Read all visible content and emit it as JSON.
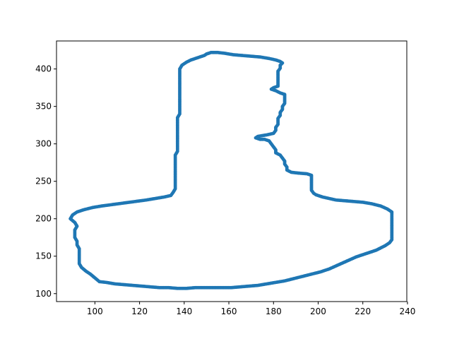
{
  "chart_data": {
    "type": "scatter",
    "title": "",
    "xlabel": "",
    "ylabel": "",
    "xlim": [
      82.8,
      239.7
    ],
    "ylim": [
      89.4,
      437.4
    ],
    "xticks": [
      100,
      120,
      140,
      160,
      180,
      200,
      220,
      240
    ],
    "yticks": [
      100,
      150,
      200,
      250,
      300,
      350,
      400
    ],
    "xtick_labels": [
      "100",
      "120",
      "140",
      "160",
      "180",
      "200",
      "220",
      "240"
    ],
    "ytick_labels": [
      "100",
      "150",
      "200",
      "250",
      "300",
      "350",
      "400"
    ],
    "grid": false,
    "legend": "none",
    "marker_color": "#1f77b4",
    "series": [
      {
        "points": [
          [
            152,
            422
          ],
          [
            155,
            422
          ],
          [
            158,
            421
          ],
          [
            162,
            419
          ],
          [
            166,
            418
          ],
          [
            170,
            417
          ],
          [
            174,
            416
          ],
          [
            178,
            414
          ],
          [
            181,
            412
          ],
          [
            183,
            410
          ],
          [
            184,
            408
          ],
          [
            183,
            405
          ],
          [
            183,
            401
          ],
          [
            182,
            397
          ],
          [
            182,
            393
          ],
          [
            182,
            389
          ],
          [
            182,
            385
          ],
          [
            182,
            381
          ],
          [
            182,
            377
          ],
          [
            180,
            375
          ],
          [
            179,
            373
          ],
          [
            181,
            371
          ],
          [
            183,
            368
          ],
          [
            185,
            366
          ],
          [
            185,
            362
          ],
          [
            185,
            358
          ],
          [
            185,
            354
          ],
          [
            184,
            350
          ],
          [
            184,
            346
          ],
          [
            183,
            342
          ],
          [
            183,
            338
          ],
          [
            182,
            334
          ],
          [
            182,
            330
          ],
          [
            182,
            326
          ],
          [
            181,
            322
          ],
          [
            181,
            318
          ],
          [
            180,
            314
          ],
          [
            177,
            312
          ],
          [
            173,
            310
          ],
          [
            172,
            308
          ],
          [
            174,
            306
          ],
          [
            176,
            306
          ],
          [
            178,
            304
          ],
          [
            179,
            300
          ],
          [
            180,
            296
          ],
          [
            181,
            292
          ],
          [
            181,
            288
          ],
          [
            183,
            285
          ],
          [
            184,
            281
          ],
          [
            185,
            277
          ],
          [
            185,
            273
          ],
          [
            186,
            269
          ],
          [
            186,
            265
          ],
          [
            188,
            262
          ],
          [
            191,
            261
          ],
          [
            195,
            260
          ],
          [
            197,
            258
          ],
          [
            197,
            254
          ],
          [
            197,
            250
          ],
          [
            197,
            246
          ],
          [
            197,
            242
          ],
          [
            197,
            238
          ],
          [
            198,
            234
          ],
          [
            199,
            232
          ],
          [
            202,
            229
          ],
          [
            205,
            227
          ],
          [
            208,
            225
          ],
          [
            212,
            224
          ],
          [
            216,
            223
          ],
          [
            220,
            222
          ],
          [
            224,
            220
          ],
          [
            228,
            217
          ],
          [
            231,
            213
          ],
          [
            233,
            209
          ],
          [
            233,
            205
          ],
          [
            233,
            200
          ],
          [
            233,
            196
          ],
          [
            233,
            192
          ],
          [
            233,
            188
          ],
          [
            233,
            184
          ],
          [
            233,
            180
          ],
          [
            233,
            176
          ],
          [
            233,
            172
          ],
          [
            232,
            168
          ],
          [
            230,
            164
          ],
          [
            228,
            161
          ],
          [
            226,
            158
          ],
          [
            223,
            155
          ],
          [
            220,
            152
          ],
          [
            217,
            149
          ],
          [
            214,
            145
          ],
          [
            211,
            141
          ],
          [
            208,
            137
          ],
          [
            205,
            133
          ],
          [
            201,
            129
          ],
          [
            197,
            126
          ],
          [
            193,
            123
          ],
          [
            189,
            120
          ],
          [
            185,
            117
          ],
          [
            181,
            115
          ],
          [
            177,
            113
          ],
          [
            173,
            111
          ],
          [
            169,
            110
          ],
          [
            165,
            109
          ],
          [
            161,
            108
          ],
          [
            157,
            108
          ],
          [
            153,
            108
          ],
          [
            149,
            108
          ],
          [
            145,
            108
          ],
          [
            141,
            107
          ],
          [
            137,
            107
          ],
          [
            133,
            108
          ],
          [
            129,
            108
          ],
          [
            125,
            109
          ],
          [
            121,
            110
          ],
          [
            117,
            111
          ],
          [
            113,
            112
          ],
          [
            109,
            113
          ],
          [
            105,
            115
          ],
          [
            102,
            116
          ],
          [
            100,
            121
          ],
          [
            98,
            126
          ],
          [
            96,
            130
          ],
          [
            94,
            135
          ],
          [
            93,
            140
          ],
          [
            93,
            145
          ],
          [
            93,
            150
          ],
          [
            93,
            155
          ],
          [
            93,
            160
          ],
          [
            92,
            165
          ],
          [
            92,
            170
          ],
          [
            91,
            175
          ],
          [
            91,
            180
          ],
          [
            91,
            185
          ],
          [
            92,
            190
          ],
          [
            91,
            195
          ],
          [
            89,
            200
          ],
          [
            90,
            205
          ],
          [
            92,
            209
          ],
          [
            95,
            212
          ],
          [
            99,
            215
          ],
          [
            103,
            217
          ],
          [
            108,
            219
          ],
          [
            113,
            221
          ],
          [
            118,
            223
          ],
          [
            123,
            225
          ],
          [
            127,
            227
          ],
          [
            131,
            229
          ],
          [
            134,
            231
          ],
          [
            135,
            235
          ],
          [
            136,
            240
          ],
          [
            136,
            245
          ],
          [
            136,
            250
          ],
          [
            136,
            255
          ],
          [
            136,
            260
          ],
          [
            136,
            265
          ],
          [
            136,
            270
          ],
          [
            136,
            275
          ],
          [
            136,
            280
          ],
          [
            136,
            285
          ],
          [
            137,
            290
          ],
          [
            137,
            295
          ],
          [
            137,
            300
          ],
          [
            137,
            305
          ],
          [
            137,
            310
          ],
          [
            137,
            315
          ],
          [
            137,
            320
          ],
          [
            137,
            325
          ],
          [
            137,
            330
          ],
          [
            137,
            335
          ],
          [
            138,
            340
          ],
          [
            138,
            345
          ],
          [
            138,
            350
          ],
          [
            138,
            355
          ],
          [
            138,
            360
          ],
          [
            138,
            365
          ],
          [
            138,
            370
          ],
          [
            138,
            375
          ],
          [
            138,
            380
          ],
          [
            138,
            385
          ],
          [
            138,
            390
          ],
          [
            138,
            395
          ],
          [
            138,
            400
          ],
          [
            139,
            405
          ],
          [
            141,
            409
          ],
          [
            143,
            412
          ],
          [
            145,
            414
          ],
          [
            147,
            416
          ],
          [
            149,
            418
          ],
          [
            150,
            420
          ]
        ]
      }
    ]
  }
}
